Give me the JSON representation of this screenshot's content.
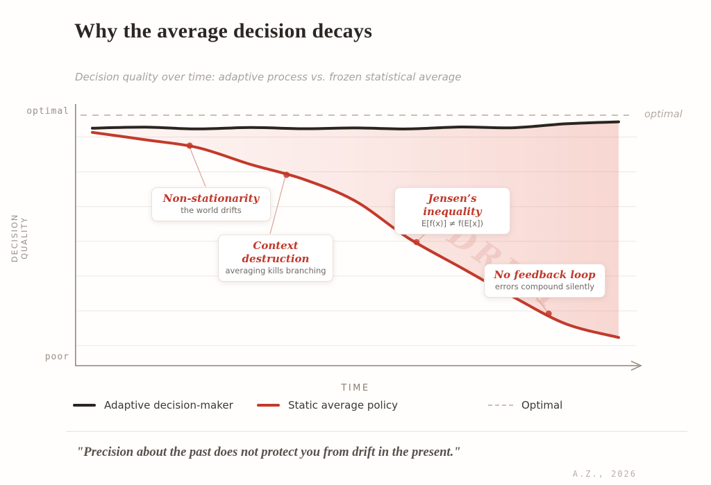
{
  "header": {
    "title": "Why the average decision decays",
    "subtitle": "Decision quality over time: adaptive process vs. frozen statistical average"
  },
  "axes": {
    "y_axis_label": "DECISION QUALITY",
    "x_axis_label": "TIME",
    "y_top_label": "optimal",
    "y_bottom_label": "poor",
    "optimal_right_label": "optimal"
  },
  "annotations": [
    {
      "title": "Non-stationarity",
      "subtitle": "the world drifts"
    },
    {
      "title": "Context destruction",
      "subtitle": "averaging kills branching"
    },
    {
      "title": "Jensen’s inequality",
      "subtitle": "E[f(x)] ≠ f(E[x])"
    },
    {
      "title": "No feedback loop",
      "subtitle": "errors compound silently"
    }
  ],
  "legend": [
    {
      "label": "Adaptive decision-maker",
      "swatch": "solid-black"
    },
    {
      "label": "Static average policy",
      "swatch": "solid-red"
    },
    {
      "label": "Optimal",
      "swatch": "dashed-gray"
    }
  ],
  "watermark": "DRIFT",
  "footer": {
    "quote": "\"Precision about the past does not protect you from drift in the present.\"",
    "credit": "A.Z., 2026"
  },
  "colors": {
    "accent_red": "#c23a2b",
    "ink_black": "#2b2520",
    "axis": "#8d8071",
    "grid": "#ebe7e2",
    "dashed_optimal": "#b9ab9c",
    "fill_pink": "#e98b7d",
    "leader": "#e0a79c",
    "watermark": "#c5503e"
  },
  "chart_data": {
    "type": "line",
    "title": "Why the average decision decays",
    "subtitle": "Decision quality over time: adaptive process vs. frozen statistical average",
    "xlabel": "TIME",
    "ylabel": "DECISION QUALITY",
    "ylim": [
      0,
      1
    ],
    "y_tick_labels": [
      "poor",
      "optimal"
    ],
    "grid": "horizontal",
    "legend_position": "bottom",
    "x": [
      0,
      1,
      2,
      3,
      4,
      5,
      6,
      7,
      8,
      9,
      10
    ],
    "series": [
      {
        "name": "Adaptive decision-maker",
        "style": "solid",
        "color": "#2b2520",
        "values": [
          0.947,
          0.951,
          0.944,
          0.95,
          0.945,
          0.948,
          0.944,
          0.952,
          0.949,
          0.965,
          0.973
        ]
      },
      {
        "name": "Static average policy",
        "style": "solid",
        "color": "#c23a2b",
        "values": [
          0.93,
          0.9,
          0.868,
          0.8,
          0.74,
          0.65,
          0.5,
          0.38,
          0.26,
          0.15,
          0.095
        ]
      },
      {
        "name": "Optimal",
        "style": "dashed",
        "color": "#b9ab9c",
        "values": [
          1,
          1,
          1,
          1,
          1,
          1,
          1,
          1,
          1,
          1,
          1
        ]
      }
    ],
    "markers": [
      {
        "x": 1.85,
        "value": 0.876,
        "annotation": "Non-stationarity"
      },
      {
        "x": 3.69,
        "value": 0.757,
        "annotation": "Context destruction"
      },
      {
        "x": 6.16,
        "value": 0.483,
        "annotation": "Jensen’s inequality"
      },
      {
        "x": 8.67,
        "value": 0.192,
        "annotation": "No feedback loop"
      }
    ],
    "fill_between": {
      "upper": "Adaptive decision-maker",
      "lower": "Static average policy",
      "color": "#e98b7d",
      "opacity_gradient": [
        0.07,
        0.34
      ]
    }
  }
}
